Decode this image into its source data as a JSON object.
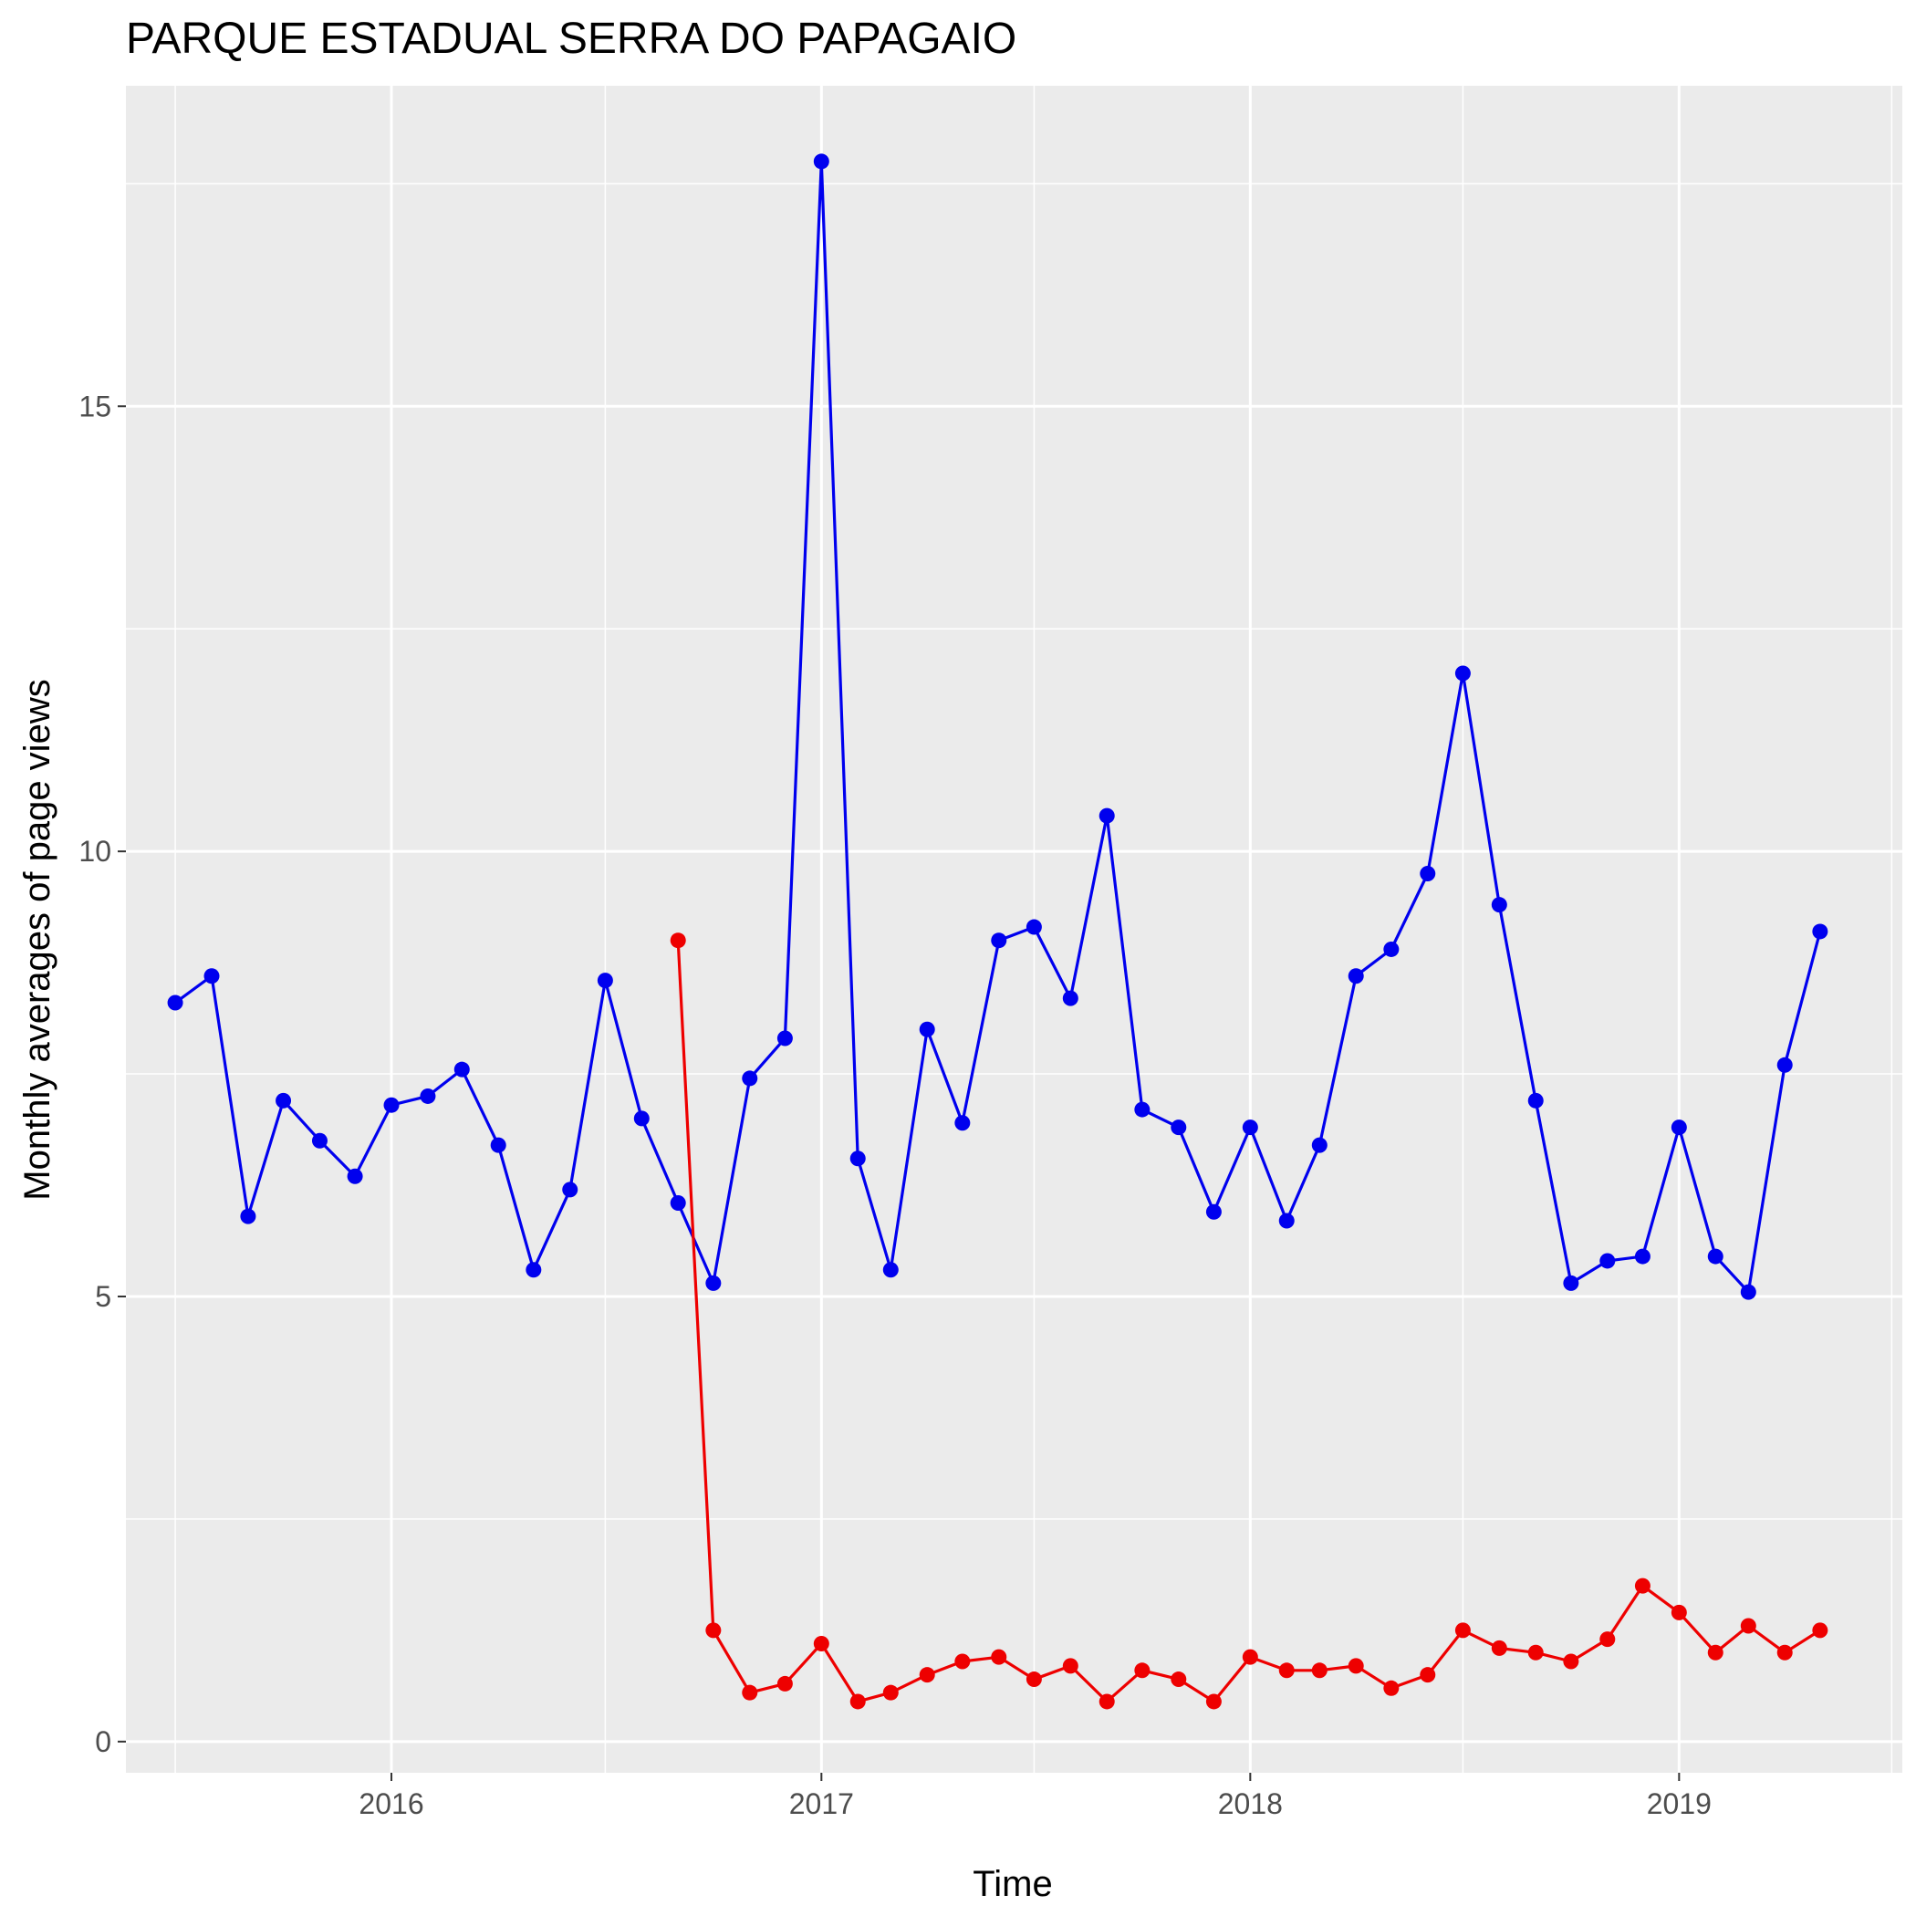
{
  "chart_data": {
    "type": "line",
    "title": "PARQUE ESTADUAL SERRA DO PAPAGAIO",
    "xlabel": "Time",
    "ylabel": "Monthly averages of page views",
    "x_ticks": [
      "2016",
      "2017",
      "2018",
      "2019"
    ],
    "y_ticks": [
      "0",
      "5",
      "10",
      "15"
    ],
    "ylim": [
      -0.35,
      18.6
    ],
    "xlim": [
      "2015-05-20",
      "2019-07-10"
    ],
    "grid": true,
    "legend": "none",
    "series": [
      {
        "color": "#0000ee",
        "points": [
          [
            "2015-07-01",
            8.3
          ],
          [
            "2015-08-01",
            8.6
          ],
          [
            "2015-09-01",
            5.9
          ],
          [
            "2015-10-01",
            7.2
          ],
          [
            "2015-11-01",
            6.75
          ],
          [
            "2015-12-01",
            6.35
          ],
          [
            "2016-01-01",
            7.15
          ],
          [
            "2016-02-01",
            7.25
          ],
          [
            "2016-03-01",
            7.55
          ],
          [
            "2016-04-01",
            6.7
          ],
          [
            "2016-05-01",
            5.3
          ],
          [
            "2016-06-01",
            6.2
          ],
          [
            "2016-07-01",
            8.55
          ],
          [
            "2016-08-01",
            7.0
          ],
          [
            "2016-09-01",
            6.05
          ],
          [
            "2016-10-01",
            5.15
          ],
          [
            "2016-11-01",
            7.45
          ],
          [
            "2016-12-01",
            7.9
          ],
          [
            "2017-01-01",
            17.75
          ],
          [
            "2017-02-01",
            6.55
          ],
          [
            "2017-03-01",
            5.3
          ],
          [
            "2017-04-01",
            8.0
          ],
          [
            "2017-05-01",
            6.95
          ],
          [
            "2017-06-01",
            9.0
          ],
          [
            "2017-07-01",
            9.15
          ],
          [
            "2017-08-01",
            8.35
          ],
          [
            "2017-09-01",
            10.4
          ],
          [
            "2017-10-01",
            7.1
          ],
          [
            "2017-11-01",
            6.9
          ],
          [
            "2017-12-01",
            5.95
          ],
          [
            "2018-01-01",
            6.9
          ],
          [
            "2018-02-01",
            5.85
          ],
          [
            "2018-03-01",
            6.7
          ],
          [
            "2018-04-01",
            8.6
          ],
          [
            "2018-05-01",
            8.9
          ],
          [
            "2018-06-01",
            9.75
          ],
          [
            "2018-07-01",
            12.0
          ],
          [
            "2018-08-01",
            9.4
          ],
          [
            "2018-09-01",
            7.2
          ],
          [
            "2018-10-01",
            5.15
          ],
          [
            "2018-11-01",
            5.4
          ],
          [
            "2018-12-01",
            5.45
          ],
          [
            "2019-01-01",
            6.9
          ],
          [
            "2019-02-01",
            5.45
          ],
          [
            "2019-03-01",
            5.05
          ],
          [
            "2019-04-01",
            7.6
          ],
          [
            "2019-05-01",
            9.1
          ]
        ]
      },
      {
        "color": "#ee0000",
        "points": [
          [
            "2016-09-01",
            9.0
          ],
          [
            "2016-10-01",
            1.25
          ],
          [
            "2016-11-01",
            0.55
          ],
          [
            "2016-12-01",
            0.65
          ],
          [
            "2017-01-01",
            1.1
          ],
          [
            "2017-02-01",
            0.45
          ],
          [
            "2017-03-01",
            0.55
          ],
          [
            "2017-04-01",
            0.75
          ],
          [
            "2017-05-01",
            0.9
          ],
          [
            "2017-06-01",
            0.95
          ],
          [
            "2017-07-01",
            0.7
          ],
          [
            "2017-08-01",
            0.85
          ],
          [
            "2017-09-01",
            0.45
          ],
          [
            "2017-10-01",
            0.8
          ],
          [
            "2017-11-01",
            0.7
          ],
          [
            "2017-12-01",
            0.45
          ],
          [
            "2018-01-01",
            0.95
          ],
          [
            "2018-02-01",
            0.8
          ],
          [
            "2018-03-01",
            0.8
          ],
          [
            "2018-04-01",
            0.85
          ],
          [
            "2018-05-01",
            0.6
          ],
          [
            "2018-06-01",
            0.75
          ],
          [
            "2018-07-01",
            1.25
          ],
          [
            "2018-08-01",
            1.05
          ],
          [
            "2018-09-01",
            1.0
          ],
          [
            "2018-10-01",
            0.9
          ],
          [
            "2018-11-01",
            1.15
          ],
          [
            "2018-12-01",
            1.75
          ],
          [
            "2019-01-01",
            1.45
          ],
          [
            "2019-02-01",
            1.0
          ],
          [
            "2019-03-01",
            1.3
          ],
          [
            "2019-04-01",
            1.0
          ],
          [
            "2019-05-01",
            1.25
          ]
        ]
      }
    ]
  }
}
